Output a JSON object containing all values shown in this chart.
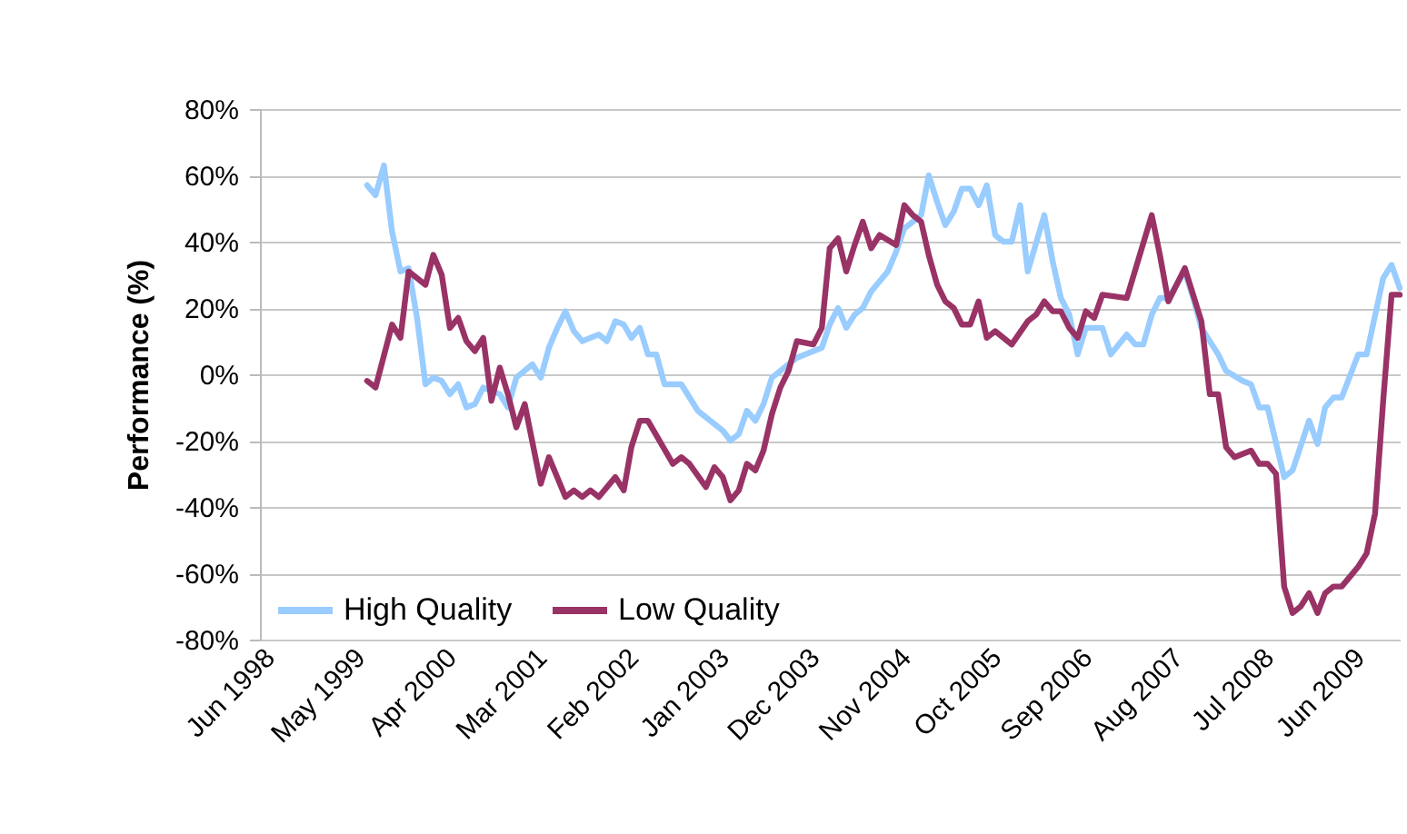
{
  "chart_data": {
    "type": "line",
    "ylabel": "Performance (%)",
    "xlim": [
      "1998-06",
      "2009-12"
    ],
    "xticks": [
      {
        "value": "1998-06",
        "label": "Jun 1998"
      },
      {
        "value": "1999-05",
        "label": "May 1999"
      },
      {
        "value": "2000-04",
        "label": "Apr 2000"
      },
      {
        "value": "2001-03",
        "label": "Mar 2001"
      },
      {
        "value": "2002-02",
        "label": "Feb 2002"
      },
      {
        "value": "2003-01",
        "label": "Jan 2003"
      },
      {
        "value": "2003-12",
        "label": "Dec 2003"
      },
      {
        "value": "2004-11",
        "label": "Nov 2004"
      },
      {
        "value": "2005-10",
        "label": "Oct 2005"
      },
      {
        "value": "2006-09",
        "label": "Sep 2006"
      },
      {
        "value": "2007-08",
        "label": "Aug 2007"
      },
      {
        "value": "2008-07",
        "label": "Jul 2008"
      },
      {
        "value": "2009-06",
        "label": "Jun 2009"
      }
    ],
    "ylim": [
      -80,
      80
    ],
    "yticks": [
      {
        "value": -80,
        "label": "-80%"
      },
      {
        "value": -60,
        "label": "-60%"
      },
      {
        "value": -40,
        "label": "-40%"
      },
      {
        "value": -20,
        "label": "-20%"
      },
      {
        "value": 0,
        "label": "0%"
      },
      {
        "value": 20,
        "label": "20%"
      },
      {
        "value": 40,
        "label": "40%"
      },
      {
        "value": 60,
        "label": "60%"
      },
      {
        "value": 80,
        "label": "80%"
      }
    ],
    "grid": "y",
    "legend": "bottom left",
    "line_style": "solid",
    "series": [
      {
        "name": "High Quality",
        "color": "#99ccff",
        "x": [
          "1999-07",
          "1999-08",
          "1999-09",
          "1999-10",
          "1999-11",
          "1999-12",
          "2000-01",
          "2000-02",
          "2000-03",
          "2000-04",
          "2000-05",
          "2000-06",
          "2000-07",
          "2000-08",
          "2000-09",
          "2000-11",
          "2000-12",
          "2001-01",
          "2001-03",
          "2001-04",
          "2001-05",
          "2001-06",
          "2001-07",
          "2001-08",
          "2001-09",
          "2001-10",
          "2001-11",
          "2001-12",
          "2002-01",
          "2002-02",
          "2002-03",
          "2002-04",
          "2002-05",
          "2002-06",
          "2002-07",
          "2002-09",
          "2002-11",
          "2003-01",
          "2003-02",
          "2003-03",
          "2003-04",
          "2003-05",
          "2003-06",
          "2003-07",
          "2003-08",
          "2003-10",
          "2003-11",
          "2004-01",
          "2004-02",
          "2004-03",
          "2004-04",
          "2004-05",
          "2004-06",
          "2004-07",
          "2004-08",
          "2004-10",
          "2004-11",
          "2004-12",
          "2005-02",
          "2005-03",
          "2005-04",
          "2005-05",
          "2005-06",
          "2005-07",
          "2005-08",
          "2005-09",
          "2005-10",
          "2005-11",
          "2005-12",
          "2006-01",
          "2006-02",
          "2006-03",
          "2006-05",
          "2006-06",
          "2006-07",
          "2006-08",
          "2006-09",
          "2006-10",
          "2006-12",
          "2007-01",
          "2007-03",
          "2007-04",
          "2007-05",
          "2007-06",
          "2007-07",
          "2007-08",
          "2007-10",
          "2007-11",
          "2007-12",
          "2008-02",
          "2008-03",
          "2008-05",
          "2008-06",
          "2008-07",
          "2008-08",
          "2008-10",
          "2008-11",
          "2009-01",
          "2009-02",
          "2009-03",
          "2009-04",
          "2009-05",
          "2009-07",
          "2009-08",
          "2009-10",
          "2009-11",
          "2009-12"
        ],
        "values": [
          57,
          54,
          63,
          43,
          31,
          32,
          17,
          -3,
          -1,
          -2,
          -6,
          -3,
          -10,
          -9,
          -4,
          -6,
          -10,
          -1,
          3,
          -1,
          8,
          14,
          19,
          13,
          10,
          11,
          12,
          10,
          16,
          15,
          11,
          14,
          6,
          6,
          -3,
          -3,
          -11,
          -15,
          -17,
          -20,
          -18,
          -11,
          -14,
          -9,
          -1,
          3,
          5,
          7,
          8,
          15,
          20,
          14,
          18,
          20,
          25,
          31,
          37,
          44,
          48,
          60,
          52,
          45,
          49,
          56,
          56,
          51,
          57,
          42,
          40,
          40,
          51,
          31,
          48,
          34,
          23,
          18,
          6,
          14,
          14,
          6,
          12,
          9,
          9,
          18,
          23,
          23,
          31,
          23,
          14,
          6,
          1,
          -2,
          -3,
          -10,
          -10,
          -31,
          -29,
          -14,
          -21,
          -10,
          -7,
          -7,
          6,
          6,
          29,
          33,
          26
        ]
      },
      {
        "name": "Low  Quality",
        "color": "#993366",
        "x": [
          "1999-07",
          "1999-08",
          "1999-10",
          "1999-11",
          "1999-12",
          "2000-02",
          "2000-03",
          "2000-04",
          "2000-05",
          "2000-06",
          "2000-07",
          "2000-08",
          "2000-09",
          "2000-10",
          "2000-11",
          "2000-12",
          "2001-01",
          "2001-02",
          "2001-04",
          "2001-05",
          "2001-07",
          "2001-08",
          "2001-09",
          "2001-10",
          "2001-11",
          "2002-01",
          "2002-02",
          "2002-03",
          "2002-04",
          "2002-05",
          "2002-08",
          "2002-09",
          "2002-10",
          "2002-12",
          "2003-01",
          "2003-02",
          "2003-03",
          "2003-04",
          "2003-05",
          "2003-06",
          "2003-07",
          "2003-08",
          "2003-09",
          "2003-10",
          "2003-11",
          "2004-01",
          "2004-02",
          "2004-03",
          "2004-04",
          "2004-05",
          "2004-06",
          "2004-07",
          "2004-08",
          "2004-09",
          "2004-11",
          "2004-12",
          "2005-01",
          "2005-02",
          "2005-03",
          "2005-04",
          "2005-05",
          "2005-06",
          "2005-07",
          "2005-08",
          "2005-09",
          "2005-10",
          "2005-11",
          "2006-01",
          "2006-03",
          "2006-04",
          "2006-05",
          "2006-06",
          "2006-07",
          "2006-08",
          "2006-09",
          "2006-10",
          "2006-11",
          "2006-12",
          "2007-03",
          "2007-06",
          "2007-07",
          "2007-08",
          "2007-10",
          "2007-12",
          "2008-01",
          "2008-02",
          "2008-03",
          "2008-04",
          "2008-06",
          "2008-07",
          "2008-08",
          "2008-09",
          "2008-10",
          "2008-11",
          "2008-12",
          "2009-01",
          "2009-02",
          "2009-03",
          "2009-04",
          "2009-05",
          "2009-06",
          "2009-07",
          "2009-08",
          "2009-09",
          "2009-10",
          "2009-11",
          "2009-12"
        ],
        "values": [
          -2,
          -4,
          15,
          11,
          31,
          27,
          36,
          30,
          14,
          17,
          10,
          7,
          11,
          -8,
          2,
          -6,
          -16,
          -9,
          -33,
          -25,
          -37,
          -35,
          -37,
          -35,
          -37,
          -31,
          -35,
          -22,
          -14,
          -14,
          -27,
          -25,
          -27,
          -34,
          -28,
          -31,
          -38,
          -35,
          -27,
          -29,
          -23,
          -12,
          -4,
          1,
          10,
          9,
          14,
          38,
          41,
          31,
          39,
          46,
          38,
          42,
          39,
          51,
          48,
          46,
          36,
          27,
          22,
          20,
          15,
          15,
          22,
          11,
          13,
          9,
          16,
          18,
          22,
          19,
          19,
          14,
          11,
          19,
          17,
          24,
          23,
          48,
          36,
          22,
          32,
          16,
          -6,
          -6,
          -22,
          -25,
          -23,
          -27,
          -27,
          -30,
          -64,
          -72,
          -70,
          -66,
          -72,
          -66,
          -64,
          -64,
          -61,
          -58,
          -54,
          -42,
          -8,
          24,
          24
        ]
      }
    ]
  }
}
